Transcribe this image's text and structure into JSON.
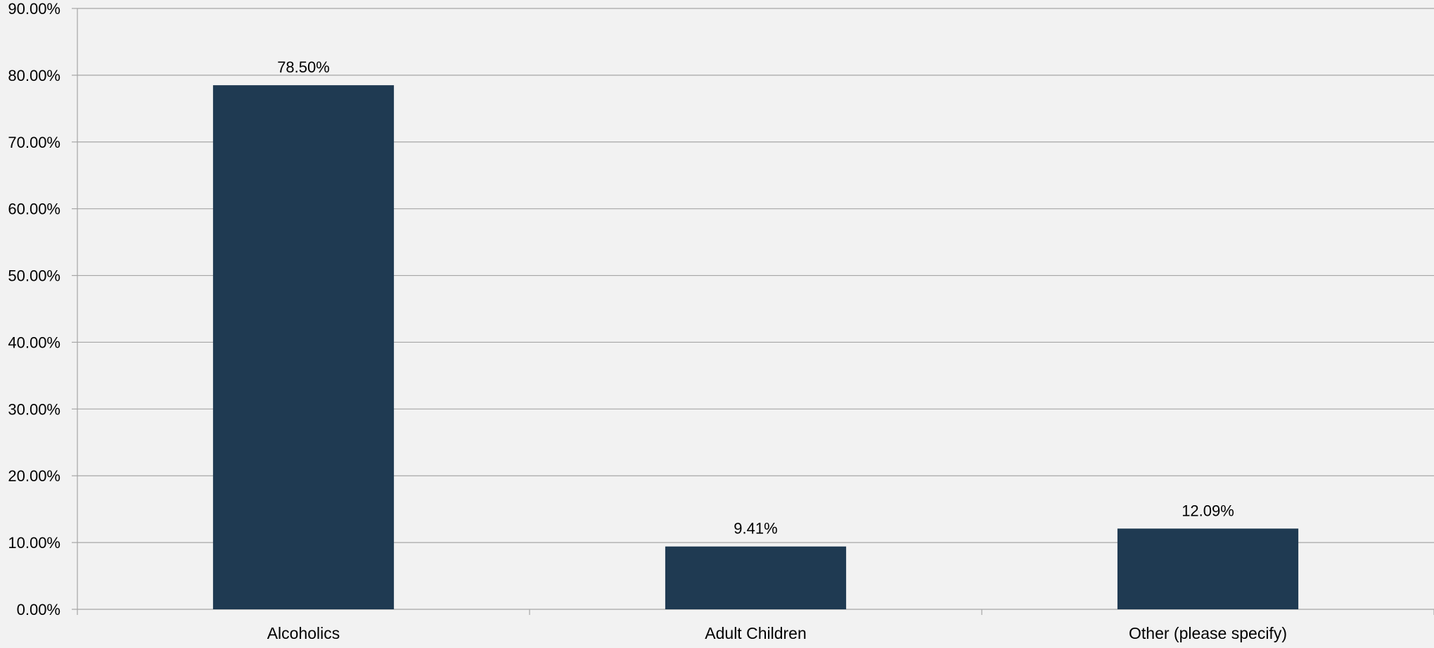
{
  "chart_data": {
    "type": "bar",
    "categories": [
      "Alcoholics",
      "Adult Children",
      "Other (please specify)"
    ],
    "values": [
      78.5,
      9.41,
      12.09
    ],
    "data_labels": [
      "78.50%",
      "9.41%",
      "12.09%"
    ],
    "title": "",
    "xlabel": "",
    "ylabel": "",
    "ylim": [
      0,
      90
    ],
    "y_ticks": [
      0,
      10,
      20,
      30,
      40,
      50,
      60,
      70,
      80,
      90
    ],
    "y_tick_labels": [
      "0.00%",
      "10.00%",
      "20.00%",
      "30.00%",
      "40.00%",
      "50.00%",
      "60.00%",
      "70.00%",
      "80.00%",
      "90.00%"
    ],
    "grid": true,
    "legend": "none"
  },
  "colors": {
    "background": "#f2f2f2",
    "bar": "#1f3a52",
    "gridline": "#a6a6a6",
    "axis": "#a6a6a6",
    "text": "#000000"
  }
}
